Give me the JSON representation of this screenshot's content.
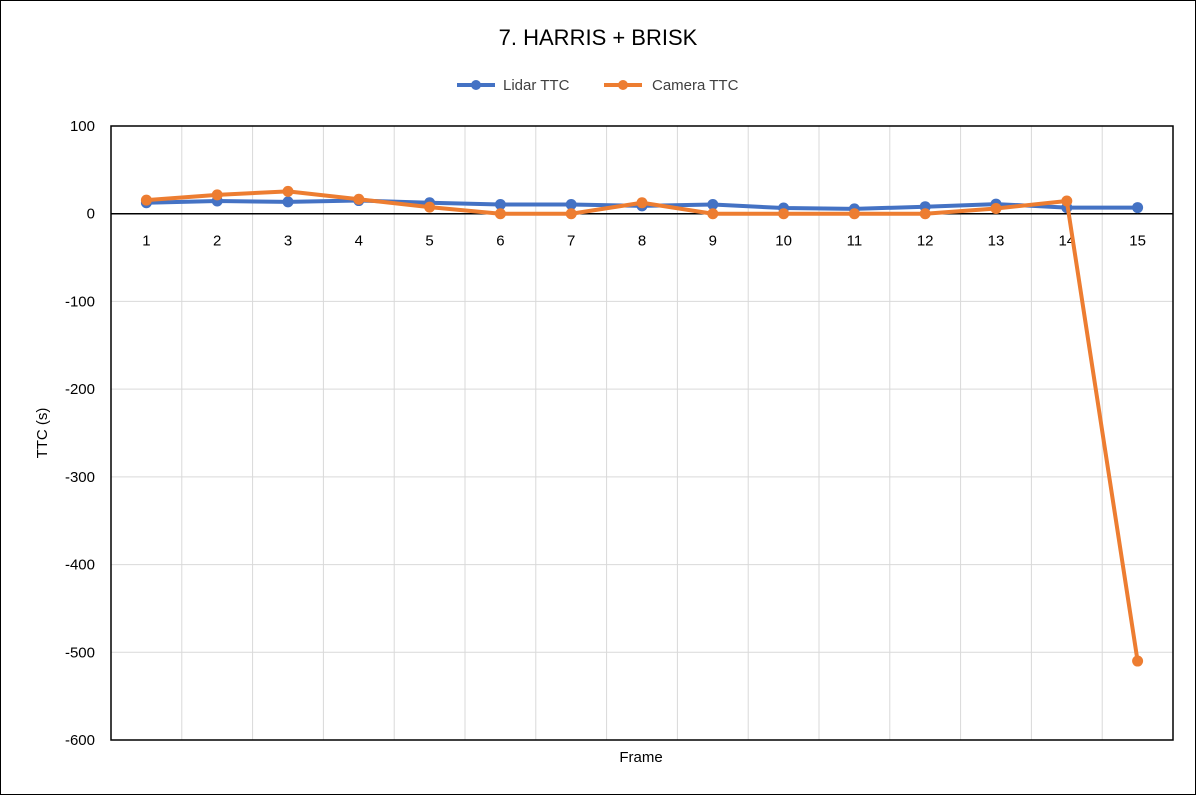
{
  "chart_data": {
    "type": "line",
    "title": "7. HARRIS + BRISK",
    "xlabel": "Frame",
    "ylabel": "TTC (s)",
    "categories": [
      "1",
      "2",
      "3",
      "4",
      "5",
      "6",
      "7",
      "8",
      "9",
      "10",
      "11",
      "12",
      "13",
      "14",
      "15"
    ],
    "ylim": [
      -600,
      100
    ],
    "yticks": [
      "100",
      "0",
      "-100",
      "-200",
      "-300",
      "-400",
      "-500",
      "-600"
    ],
    "ytick_values": [
      100,
      0,
      -100,
      -200,
      -300,
      -400,
      -500,
      -600
    ],
    "grid": true,
    "legend_position": "top-center",
    "series": [
      {
        "name": "Lidar TTC",
        "color": "#4472C4",
        "values": [
          12.5,
          14.5,
          13.5,
          15.0,
          12.5,
          10.5,
          10.5,
          9.0,
          10.5,
          6.5,
          5.5,
          8.0,
          11.0,
          7.0,
          7.0
        ]
      },
      {
        "name": "Camera TTC",
        "color": "#ED7D31",
        "values": [
          15.5,
          21.5,
          25.5,
          16.5,
          7.5,
          0.0,
          0.0,
          12.5,
          0.0,
          0.0,
          0.0,
          0.0,
          6.0,
          14.5,
          -510.0
        ]
      }
    ]
  }
}
